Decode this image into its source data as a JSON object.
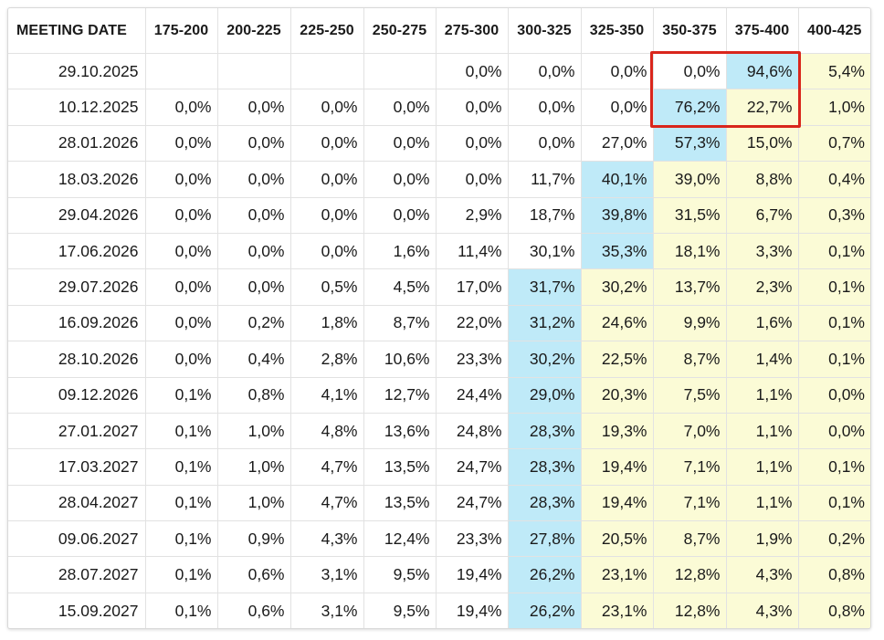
{
  "table": {
    "headers": [
      "MEETING DATE",
      "175-200",
      "200-225",
      "225-250",
      "250-275",
      "275-300",
      "300-325",
      "325-350",
      "350-375",
      "375-400",
      "400-425"
    ],
    "colors": {
      "blue": "#bfeaf8",
      "yellow": "#fbfbd6",
      "none": "#ffffff",
      "highlight_border": "#d9261c"
    },
    "highlighted_region": {
      "rows": [
        "29.10.2025",
        "10.12.2025"
      ],
      "columns": [
        "350-375",
        "375-400"
      ]
    },
    "rows": [
      {
        "date": "29.10.2025",
        "values": [
          "",
          "",
          "",
          "",
          "0,0%",
          "0,0%",
          "0,0%",
          "0,0%",
          "94,6%",
          "5,4%"
        ],
        "fills": [
          "n",
          "n",
          "n",
          "n",
          "n",
          "n",
          "n",
          "n",
          "b",
          "y"
        ]
      },
      {
        "date": "10.12.2025",
        "values": [
          "0,0%",
          "0,0%",
          "0,0%",
          "0,0%",
          "0,0%",
          "0,0%",
          "0,0%",
          "76,2%",
          "22,7%",
          "1,0%"
        ],
        "fills": [
          "n",
          "n",
          "n",
          "n",
          "n",
          "n",
          "n",
          "b",
          "y",
          "y"
        ]
      },
      {
        "date": "28.01.2026",
        "values": [
          "0,0%",
          "0,0%",
          "0,0%",
          "0,0%",
          "0,0%",
          "0,0%",
          "27,0%",
          "57,3%",
          "15,0%",
          "0,7%"
        ],
        "fills": [
          "n",
          "n",
          "n",
          "n",
          "n",
          "n",
          "n",
          "b",
          "y",
          "y"
        ]
      },
      {
        "date": "18.03.2026",
        "values": [
          "0,0%",
          "0,0%",
          "0,0%",
          "0,0%",
          "0,0%",
          "11,7%",
          "40,1%",
          "39,0%",
          "8,8%",
          "0,4%"
        ],
        "fills": [
          "n",
          "n",
          "n",
          "n",
          "n",
          "n",
          "b",
          "y",
          "y",
          "y"
        ]
      },
      {
        "date": "29.04.2026",
        "values": [
          "0,0%",
          "0,0%",
          "0,0%",
          "0,0%",
          "2,9%",
          "18,7%",
          "39,8%",
          "31,5%",
          "6,7%",
          "0,3%"
        ],
        "fills": [
          "n",
          "n",
          "n",
          "n",
          "n",
          "n",
          "b",
          "y",
          "y",
          "y"
        ]
      },
      {
        "date": "17.06.2026",
        "values": [
          "0,0%",
          "0,0%",
          "0,0%",
          "1,6%",
          "11,4%",
          "30,1%",
          "35,3%",
          "18,1%",
          "3,3%",
          "0,1%"
        ],
        "fills": [
          "n",
          "n",
          "n",
          "n",
          "n",
          "n",
          "b",
          "y",
          "y",
          "y"
        ]
      },
      {
        "date": "29.07.2026",
        "values": [
          "0,0%",
          "0,0%",
          "0,5%",
          "4,5%",
          "17,0%",
          "31,7%",
          "30,2%",
          "13,7%",
          "2,3%",
          "0,1%"
        ],
        "fills": [
          "n",
          "n",
          "n",
          "n",
          "n",
          "b",
          "y",
          "y",
          "y",
          "y"
        ]
      },
      {
        "date": "16.09.2026",
        "values": [
          "0,0%",
          "0,2%",
          "1,8%",
          "8,7%",
          "22,0%",
          "31,2%",
          "24,6%",
          "9,9%",
          "1,6%",
          "0,1%"
        ],
        "fills": [
          "n",
          "n",
          "n",
          "n",
          "n",
          "b",
          "y",
          "y",
          "y",
          "y"
        ]
      },
      {
        "date": "28.10.2026",
        "values": [
          "0,0%",
          "0,4%",
          "2,8%",
          "10,6%",
          "23,3%",
          "30,2%",
          "22,5%",
          "8,7%",
          "1,4%",
          "0,1%"
        ],
        "fills": [
          "n",
          "n",
          "n",
          "n",
          "n",
          "b",
          "y",
          "y",
          "y",
          "y"
        ]
      },
      {
        "date": "09.12.2026",
        "values": [
          "0,1%",
          "0,8%",
          "4,1%",
          "12,7%",
          "24,4%",
          "29,0%",
          "20,3%",
          "7,5%",
          "1,1%",
          "0,0%"
        ],
        "fills": [
          "n",
          "n",
          "n",
          "n",
          "n",
          "b",
          "y",
          "y",
          "y",
          "y"
        ]
      },
      {
        "date": "27.01.2027",
        "values": [
          "0,1%",
          "1,0%",
          "4,8%",
          "13,6%",
          "24,8%",
          "28,3%",
          "19,3%",
          "7,0%",
          "1,1%",
          "0,0%"
        ],
        "fills": [
          "n",
          "n",
          "n",
          "n",
          "n",
          "b",
          "y",
          "y",
          "y",
          "y"
        ]
      },
      {
        "date": "17.03.2027",
        "values": [
          "0,1%",
          "1,0%",
          "4,7%",
          "13,5%",
          "24,7%",
          "28,3%",
          "19,4%",
          "7,1%",
          "1,1%",
          "0,1%"
        ],
        "fills": [
          "n",
          "n",
          "n",
          "n",
          "n",
          "b",
          "y",
          "y",
          "y",
          "y"
        ]
      },
      {
        "date": "28.04.2027",
        "values": [
          "0,1%",
          "1,0%",
          "4,7%",
          "13,5%",
          "24,7%",
          "28,3%",
          "19,4%",
          "7,1%",
          "1,1%",
          "0,1%"
        ],
        "fills": [
          "n",
          "n",
          "n",
          "n",
          "n",
          "b",
          "y",
          "y",
          "y",
          "y"
        ]
      },
      {
        "date": "09.06.2027",
        "values": [
          "0,1%",
          "0,9%",
          "4,3%",
          "12,4%",
          "23,3%",
          "27,8%",
          "20,5%",
          "8,7%",
          "1,9%",
          "0,2%"
        ],
        "fills": [
          "n",
          "n",
          "n",
          "n",
          "n",
          "b",
          "y",
          "y",
          "y",
          "y"
        ]
      },
      {
        "date": "28.07.2027",
        "values": [
          "0,1%",
          "0,6%",
          "3,1%",
          "9,5%",
          "19,4%",
          "26,2%",
          "23,1%",
          "12,8%",
          "4,3%",
          "0,8%"
        ],
        "fills": [
          "n",
          "n",
          "n",
          "n",
          "n",
          "b",
          "y",
          "y",
          "y",
          "y"
        ]
      },
      {
        "date": "15.09.2027",
        "values": [
          "0,1%",
          "0,6%",
          "3,1%",
          "9,5%",
          "19,4%",
          "26,2%",
          "23,1%",
          "12,8%",
          "4,3%",
          "0,8%"
        ],
        "fills": [
          "n",
          "n",
          "n",
          "n",
          "n",
          "b",
          "y",
          "y",
          "y",
          "y"
        ]
      }
    ]
  }
}
